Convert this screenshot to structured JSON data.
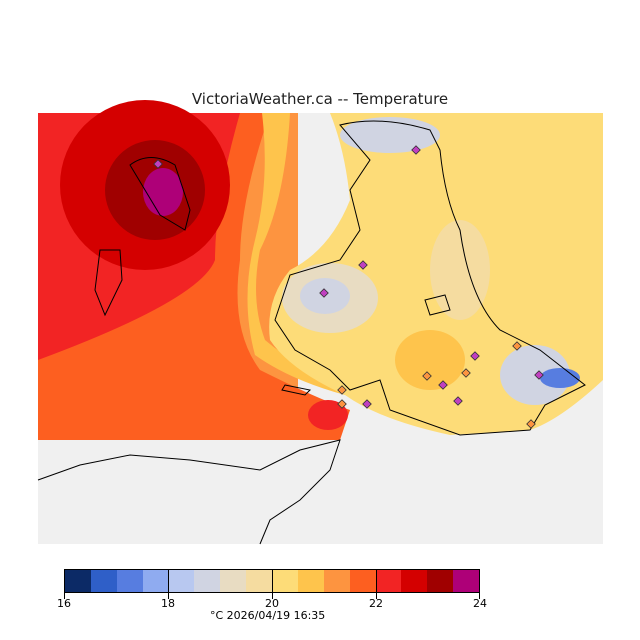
{
  "title": "VictoriaWeather.ca  --  Temperature",
  "colorbar": {
    "colors": [
      "#0c2a66",
      "#2f5fc8",
      "#577de0",
      "#8fabf0",
      "#b8c8f0",
      "#d0d4e2",
      "#e8dcc2",
      "#f5dca0",
      "#fddc78",
      "#fec44c",
      "#fd9440",
      "#fd5f20",
      "#f22424",
      "#d40000",
      "#a00000",
      "#ae0078"
    ],
    "ticks": [
      "16",
      "18",
      "20",
      "22",
      "24"
    ],
    "min": 16,
    "max": 24
  },
  "units_timestamp": "°C  2026/04/19 16:35"
}
